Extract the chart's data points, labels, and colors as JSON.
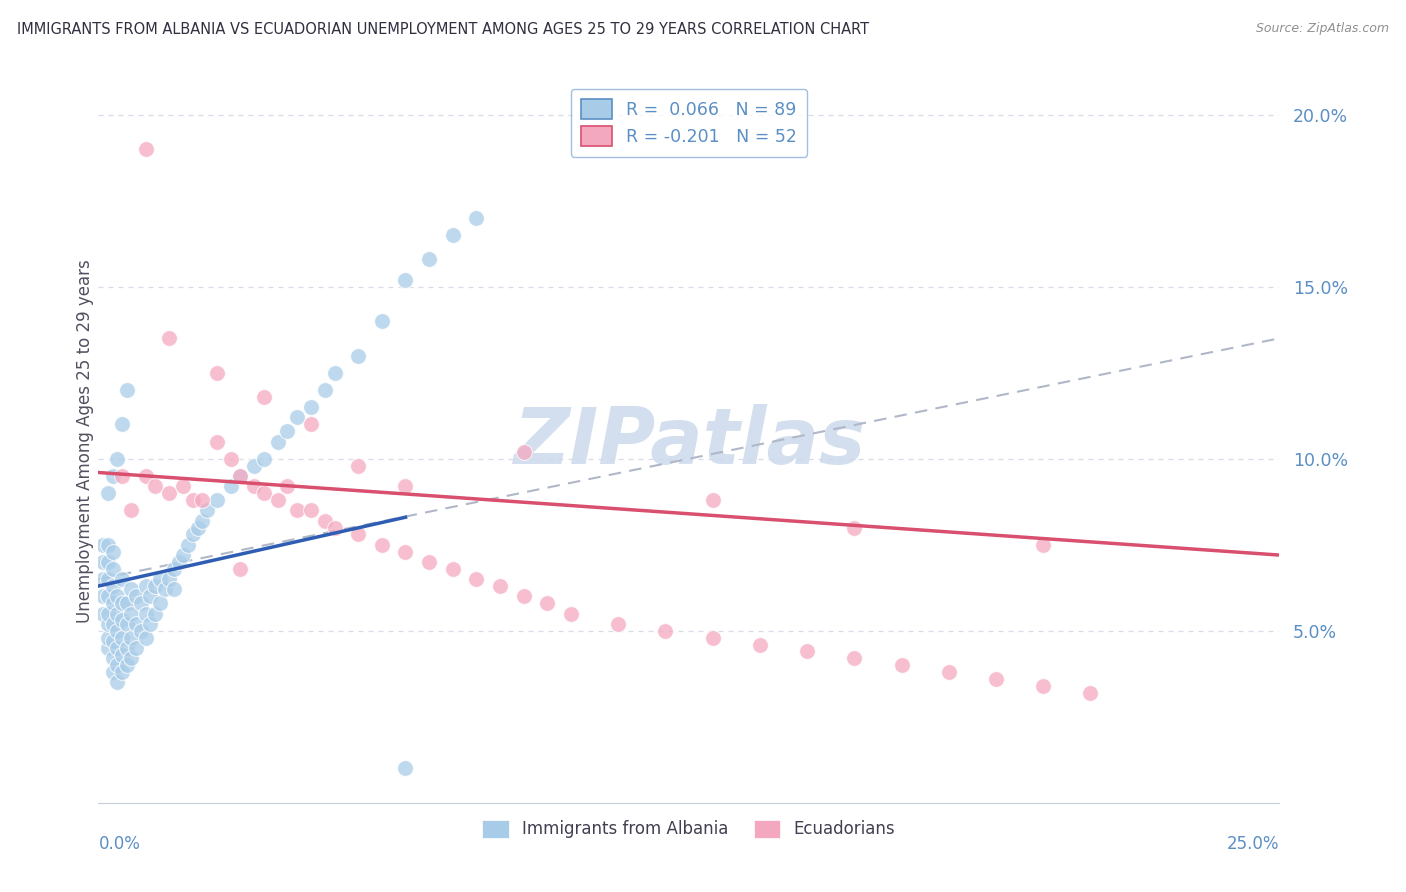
{
  "title": "IMMIGRANTS FROM ALBANIA VS ECUADORIAN UNEMPLOYMENT AMONG AGES 25 TO 29 YEARS CORRELATION CHART",
  "source": "Source: ZipAtlas.com",
  "ylabel": "Unemployment Among Ages 25 to 29 years",
  "xmin": 0.0,
  "xmax": 0.25,
  "ymin": 0.0,
  "ymax": 0.21,
  "ytick_vals": [
    0.05,
    0.1,
    0.15,
    0.2
  ],
  "ytick_labels": [
    "5.0%",
    "10.0%",
    "15.0%",
    "20.0%"
  ],
  "legend1_label": "R =  0.066   N = 89",
  "legend2_label": "R = -0.201   N = 52",
  "blue_scatter_color": "#a8cce8",
  "pink_scatter_color": "#f4a8c0",
  "blue_line_color": "#2f5db3",
  "pink_line_color": "#d94f6e",
  "dash_line_color": "#b0b8c8",
  "watermark": "ZIPatlas",
  "watermark_color": "#ccdaec",
  "grid_color": "#d8dce8",
  "blue_x": [
    0.001,
    0.001,
    0.001,
    0.001,
    0.001,
    0.002,
    0.002,
    0.002,
    0.002,
    0.002,
    0.002,
    0.002,
    0.002,
    0.003,
    0.003,
    0.003,
    0.003,
    0.003,
    0.003,
    0.003,
    0.003,
    0.004,
    0.004,
    0.004,
    0.004,
    0.004,
    0.004,
    0.005,
    0.005,
    0.005,
    0.005,
    0.005,
    0.005,
    0.006,
    0.006,
    0.006,
    0.006,
    0.007,
    0.007,
    0.007,
    0.007,
    0.008,
    0.008,
    0.008,
    0.009,
    0.009,
    0.01,
    0.01,
    0.01,
    0.011,
    0.011,
    0.012,
    0.012,
    0.013,
    0.013,
    0.014,
    0.015,
    0.016,
    0.016,
    0.017,
    0.018,
    0.019,
    0.02,
    0.021,
    0.022,
    0.023,
    0.025,
    0.028,
    0.03,
    0.033,
    0.035,
    0.038,
    0.04,
    0.042,
    0.045,
    0.048,
    0.05,
    0.055,
    0.06,
    0.065,
    0.07,
    0.075,
    0.08,
    0.002,
    0.003,
    0.004,
    0.005,
    0.006,
    0.065
  ],
  "blue_y": [
    0.055,
    0.06,
    0.065,
    0.07,
    0.075,
    0.045,
    0.048,
    0.052,
    0.055,
    0.06,
    0.065,
    0.07,
    0.075,
    0.038,
    0.042,
    0.047,
    0.052,
    0.058,
    0.063,
    0.068,
    0.073,
    0.035,
    0.04,
    0.045,
    0.05,
    0.055,
    0.06,
    0.038,
    0.043,
    0.048,
    0.053,
    0.058,
    0.065,
    0.04,
    0.045,
    0.052,
    0.058,
    0.042,
    0.048,
    0.055,
    0.062,
    0.045,
    0.052,
    0.06,
    0.05,
    0.058,
    0.048,
    0.055,
    0.063,
    0.052,
    0.06,
    0.055,
    0.063,
    0.058,
    0.065,
    0.062,
    0.065,
    0.068,
    0.062,
    0.07,
    0.072,
    0.075,
    0.078,
    0.08,
    0.082,
    0.085,
    0.088,
    0.092,
    0.095,
    0.098,
    0.1,
    0.105,
    0.108,
    0.112,
    0.115,
    0.12,
    0.125,
    0.13,
    0.14,
    0.152,
    0.158,
    0.165,
    0.17,
    0.09,
    0.095,
    0.1,
    0.11,
    0.12,
    0.01
  ],
  "pink_x": [
    0.005,
    0.007,
    0.01,
    0.012,
    0.015,
    0.018,
    0.02,
    0.022,
    0.025,
    0.028,
    0.03,
    0.033,
    0.035,
    0.038,
    0.04,
    0.042,
    0.045,
    0.048,
    0.05,
    0.055,
    0.06,
    0.065,
    0.07,
    0.075,
    0.08,
    0.085,
    0.09,
    0.095,
    0.1,
    0.11,
    0.12,
    0.13,
    0.14,
    0.15,
    0.16,
    0.17,
    0.18,
    0.19,
    0.2,
    0.21,
    0.015,
    0.025,
    0.035,
    0.045,
    0.055,
    0.065,
    0.09,
    0.13,
    0.16,
    0.2,
    0.01,
    0.03
  ],
  "pink_y": [
    0.095,
    0.085,
    0.095,
    0.092,
    0.09,
    0.092,
    0.088,
    0.088,
    0.105,
    0.1,
    0.095,
    0.092,
    0.09,
    0.088,
    0.092,
    0.085,
    0.085,
    0.082,
    0.08,
    0.078,
    0.075,
    0.073,
    0.07,
    0.068,
    0.065,
    0.063,
    0.06,
    0.058,
    0.055,
    0.052,
    0.05,
    0.048,
    0.046,
    0.044,
    0.042,
    0.04,
    0.038,
    0.036,
    0.034,
    0.032,
    0.135,
    0.125,
    0.118,
    0.11,
    0.098,
    0.092,
    0.102,
    0.088,
    0.08,
    0.075,
    0.19,
    0.068
  ],
  "blue_line_x0": 0.0,
  "blue_line_x1": 0.065,
  "blue_line_y0": 0.063,
  "blue_line_y1": 0.083,
  "pink_line_x0": 0.0,
  "pink_line_x1": 0.25,
  "pink_line_y0": 0.096,
  "pink_line_y1": 0.072,
  "dash_line_x0": 0.0,
  "dash_line_x1": 0.25,
  "dash_line_y0": 0.065,
  "dash_line_y1": 0.135
}
